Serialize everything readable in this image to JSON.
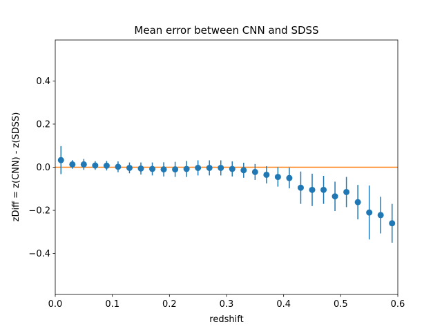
{
  "chart_data": {
    "type": "scatter",
    "title": "Mean error between CNN and SDSS",
    "xlabel": "redshift",
    "ylabel": "zDiff = z(CNN) - z(SDSS)",
    "xlim": [
      0.0,
      0.6
    ],
    "ylim": [
      -0.59,
      0.59
    ],
    "xticks": [
      0.0,
      0.1,
      0.2,
      0.3,
      0.4,
      0.5,
      0.6
    ],
    "xtick_labels": [
      "0.0",
      "0.1",
      "0.2",
      "0.3",
      "0.4",
      "0.5",
      "0.6"
    ],
    "yticks": [
      -0.4,
      -0.2,
      0.0,
      0.2,
      0.4
    ],
    "ytick_labels": [
      "−0.4",
      "−0.2",
      "0.0",
      "0.2",
      "0.4"
    ],
    "grid": false,
    "reference_line": {
      "y": 0.0,
      "color": "#ff7f0e"
    },
    "series": [
      {
        "color": "#1f77b4",
        "x": [
          0.01,
          0.03,
          0.05,
          0.07,
          0.09,
          0.11,
          0.13,
          0.15,
          0.17,
          0.19,
          0.21,
          0.23,
          0.25,
          0.27,
          0.29,
          0.31,
          0.33,
          0.35,
          0.37,
          0.39,
          0.41,
          0.43,
          0.45,
          0.47,
          0.49,
          0.51,
          0.53,
          0.55,
          0.57,
          0.59
        ],
        "y": [
          0.033,
          0.013,
          0.013,
          0.008,
          0.007,
          0.002,
          -0.003,
          -0.006,
          -0.008,
          -0.01,
          -0.01,
          -0.008,
          -0.003,
          -0.003,
          -0.003,
          -0.008,
          -0.014,
          -0.022,
          -0.035,
          -0.045,
          -0.05,
          -0.095,
          -0.105,
          -0.105,
          -0.135,
          -0.115,
          -0.162,
          -0.21,
          -0.222,
          -0.26
        ],
        "yerr": [
          0.065,
          0.02,
          0.025,
          0.02,
          0.022,
          0.025,
          0.025,
          0.028,
          0.03,
          0.033,
          0.035,
          0.037,
          0.035,
          0.035,
          0.035,
          0.035,
          0.035,
          0.037,
          0.04,
          0.045,
          0.048,
          0.075,
          0.075,
          0.065,
          0.068,
          0.07,
          0.08,
          0.125,
          0.085,
          0.09
        ]
      }
    ]
  }
}
